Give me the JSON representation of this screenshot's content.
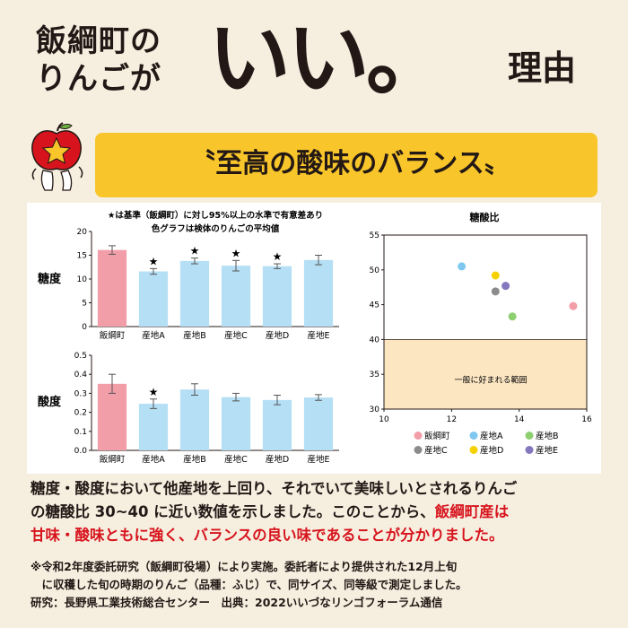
{
  "header": {
    "title_line1": "飯綱町の",
    "title_line2": "りんごが",
    "title_big": "いい。",
    "title_reason": "理由"
  },
  "banner": {
    "text": "〝至高の酸味のバランス〟"
  },
  "mascot": {
    "icon": "apple-mascot-icon",
    "star": "★",
    "colors": {
      "apple": "#d7141d",
      "star": "#f8c62a"
    }
  },
  "chart_data": [
    {
      "type": "bar",
      "ylabel": "糖度",
      "note_lines": [
        "★は基準（飯綱町）に対し95%以上の水準で有意差あり",
        "色グラフは検体のりんごの平均値"
      ],
      "categories": [
        "飯綱町",
        "産地A",
        "産地B",
        "産地C",
        "産地D",
        "産地E"
      ],
      "values": [
        16.1,
        11.6,
        13.8,
        12.8,
        12.7,
        14.0
      ],
      "errors": [
        0.9,
        0.6,
        0.6,
        1.1,
        0.5,
        1.0
      ],
      "significant": [
        false,
        true,
        true,
        true,
        true,
        false
      ],
      "ylim": [
        0,
        20
      ],
      "yticks": [
        0,
        5,
        10,
        15,
        20
      ],
      "colors": {
        "base": "#f29ea8",
        "other": "#b5dff5"
      }
    },
    {
      "type": "bar",
      "ylabel": "酸度",
      "categories": [
        "飯綱町",
        "産地A",
        "産地B",
        "産地C",
        "産地D",
        "産地E"
      ],
      "values": [
        0.35,
        0.245,
        0.32,
        0.28,
        0.265,
        0.278
      ],
      "errors": [
        0.05,
        0.025,
        0.03,
        0.02,
        0.025,
        0.015
      ],
      "significant": [
        false,
        true,
        false,
        false,
        false,
        false
      ],
      "ylim": [
        0,
        0.5
      ],
      "yticks": [
        "0.0",
        "0.1",
        "0.2",
        "0.3",
        "0.4",
        "0.5"
      ],
      "colors": {
        "base": "#f29ea8",
        "other": "#b5dff5"
      }
    },
    {
      "type": "scatter",
      "title": "糖酸比",
      "xlim": [
        10,
        16
      ],
      "ylim": [
        30,
        55
      ],
      "xticks": [
        10,
        12,
        14,
        16
      ],
      "yticks": [
        30,
        35,
        40,
        45,
        50,
        55
      ],
      "band": {
        "y_from": 30,
        "y_to": 40,
        "label": "一般に好まれる範囲",
        "color": "#fce6c2"
      },
      "points": [
        {
          "name": "飯綱町",
          "x": 15.6,
          "y": 44.8,
          "color": "#f29ea8"
        },
        {
          "name": "産地A",
          "x": 12.3,
          "y": 50.5,
          "color": "#7ec8ef"
        },
        {
          "name": "産地B",
          "x": 13.8,
          "y": 43.3,
          "color": "#8ecf72"
        },
        {
          "name": "産地C",
          "x": 13.3,
          "y": 46.9,
          "color": "#8c8c8c"
        },
        {
          "name": "産地D",
          "x": 13.3,
          "y": 49.2,
          "color": "#f6d100"
        },
        {
          "name": "産地E",
          "x": 13.6,
          "y": 47.7,
          "color": "#8477bd"
        }
      ]
    }
  ],
  "body": {
    "line1": "糖度・酸度において他産地を上回り、それでいて美味しいとされるりんご",
    "line2_black": "の糖酸比 30~40 に近い数値を示しました。このことから、",
    "line2_red": "飯綱町産は",
    "line3_red": "甘味・酸味ともに強く、バランスの良い味であることが分かりました。"
  },
  "notes": {
    "line1": "※令和2年度委託研究（飯綱町役場）により実施。委託者により提供された12月上旬",
    "line2": "　に収穫した旬の時期のりんご（品種：ふじ）で、同サイズ、同等級で測定しました。",
    "line3": "研究：長野県工業技術総合センター　出典：2022いいづなリンゴフォーラム通信"
  }
}
